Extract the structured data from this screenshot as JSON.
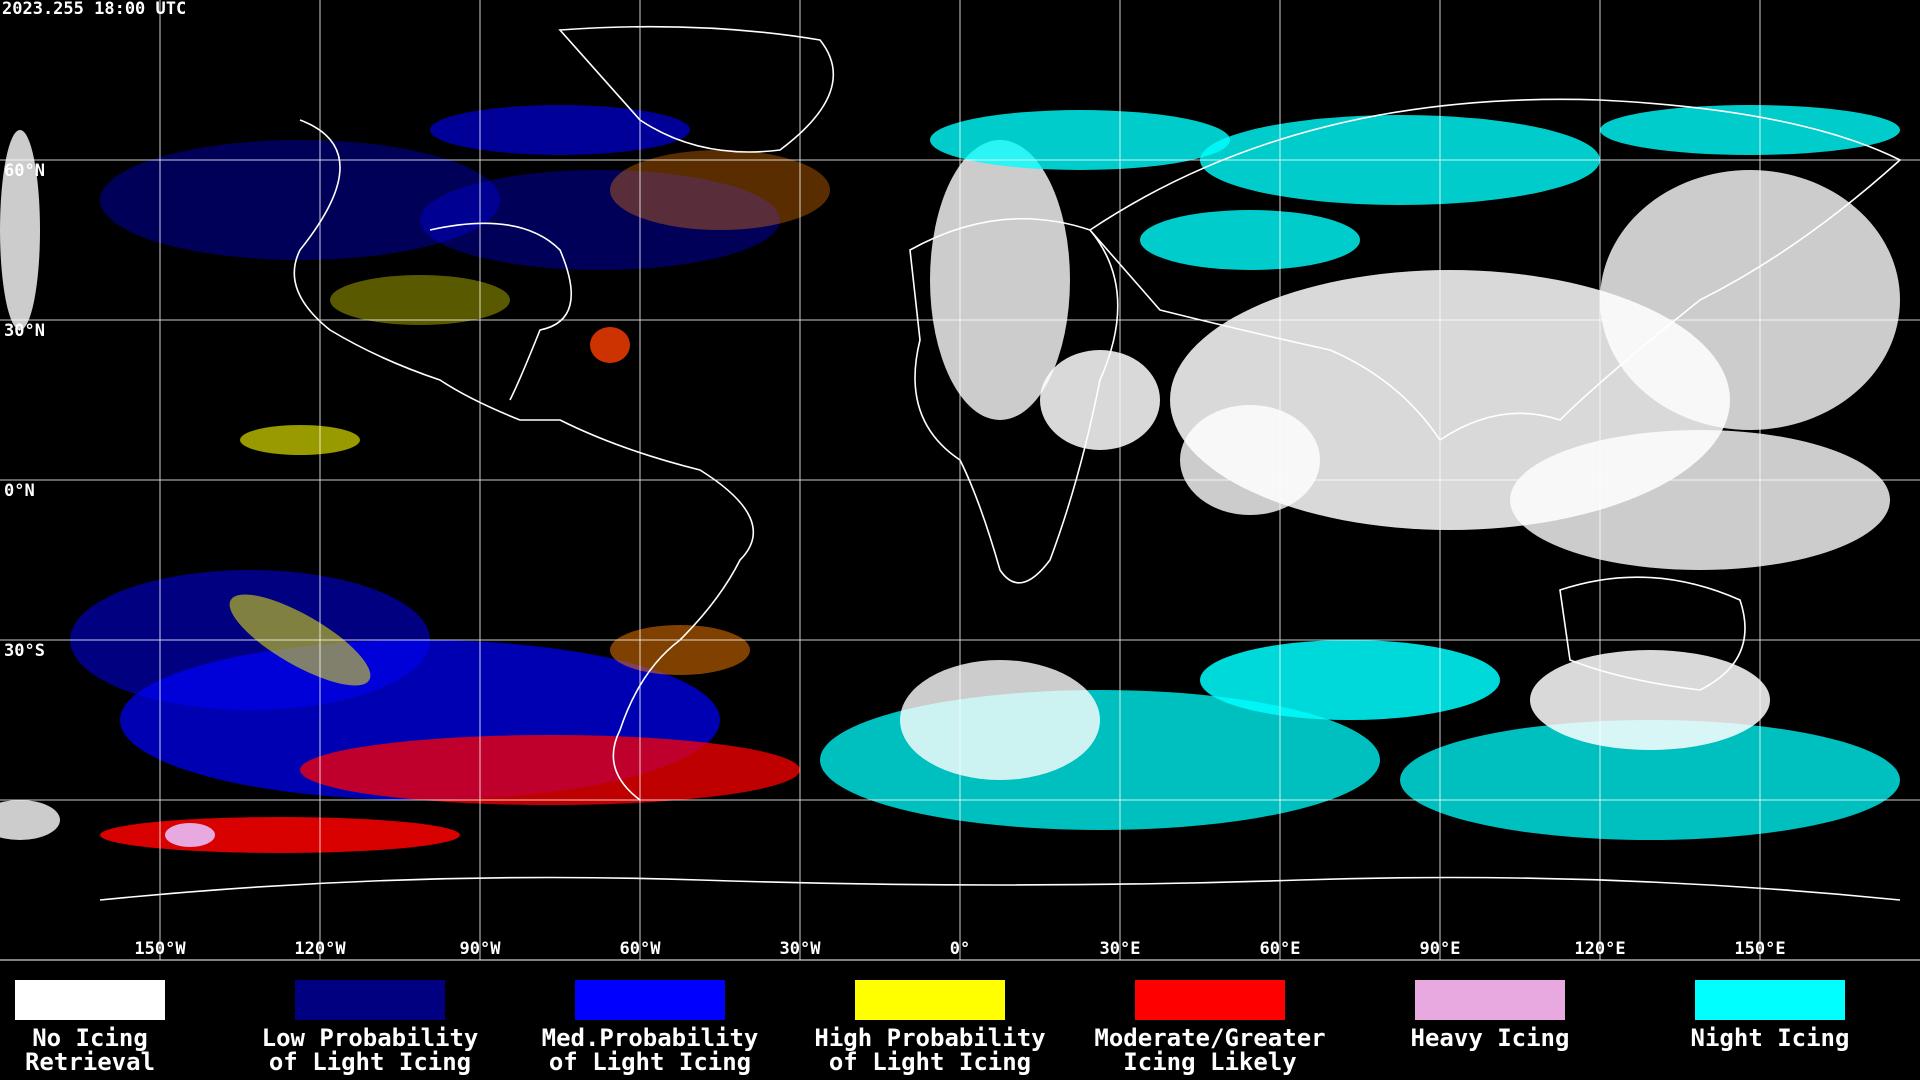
{
  "header": {
    "timestamp": "2023.255 18:00 UTC"
  },
  "map": {
    "grid_color": "#ffffff",
    "longitude_labels": [
      {
        "value": -150,
        "label": "150°W"
      },
      {
        "value": -120,
        "label": "120°W"
      },
      {
        "value": -90,
        "label": "90°W"
      },
      {
        "value": -60,
        "label": "60°W"
      },
      {
        "value": -30,
        "label": "30°W"
      },
      {
        "value": 0,
        "label": "0°"
      },
      {
        "value": 30,
        "label": "30°E"
      },
      {
        "value": 60,
        "label": "60°E"
      },
      {
        "value": 90,
        "label": "90°E"
      },
      {
        "value": 120,
        "label": "120°E"
      },
      {
        "value": 150,
        "label": "150°E"
      }
    ],
    "latitude_labels": [
      {
        "value": 60,
        "label": "60°N"
      },
      {
        "value": 30,
        "label": "30°N"
      },
      {
        "value": 0,
        "label": "0°N"
      },
      {
        "value": -30,
        "label": "30°S"
      },
      {
        "value": -60,
        "label": null
      }
    ]
  },
  "legend": {
    "items": [
      {
        "label": [
          "No Icing",
          "Retrieval"
        ],
        "color": "#ffffff"
      },
      {
        "label": [
          "Low Probability",
          "of Light Icing"
        ],
        "color": "#000080"
      },
      {
        "label": [
          "Med.Probability",
          "of Light Icing"
        ],
        "color": "#0000ff"
      },
      {
        "label": [
          "High Probability",
          "of Light Icing"
        ],
        "color": "#ffff00"
      },
      {
        "label": [
          "Moderate/Greater",
          "Icing Likely"
        ],
        "color": "#ff0000"
      },
      {
        "label": [
          "Heavy Icing"
        ],
        "color": "#e8a8e0"
      },
      {
        "label": [
          "Night Icing"
        ],
        "color": "#00ffff"
      }
    ]
  }
}
